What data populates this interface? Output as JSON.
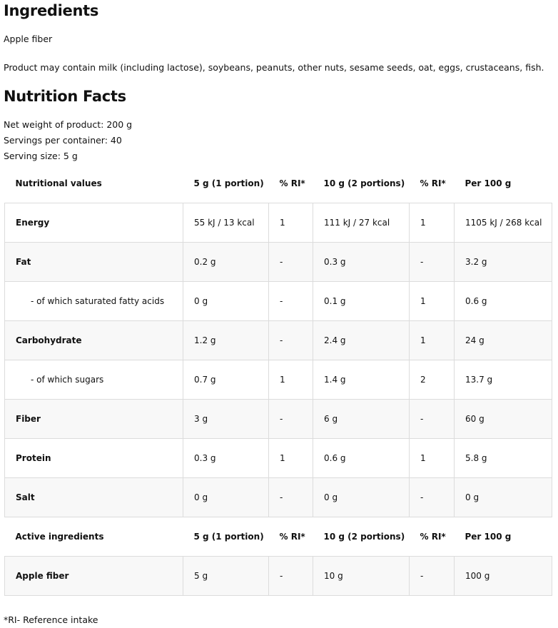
{
  "ingredients": {
    "title": "Ingredients",
    "text": "Apple fiber",
    "allergens": "Product may contain milk (including lactose), soybeans, peanuts, other nuts, sesame seeds, oat, eggs, crustaceans, fish."
  },
  "nutrition": {
    "title": "Nutrition Facts",
    "net_weight": "Net weight of product: 200 g",
    "servings": "Servings per container: 40",
    "serving_size": "Serving size: 5 g"
  },
  "table": {
    "header": [
      "Nutritional values",
      "5 g (1 portion)",
      "% RI*",
      "10 g (2 portions)",
      "% RI*",
      "Per 100 g"
    ],
    "rows": [
      {
        "cells": [
          "Energy",
          "55 kJ / 13 kcal",
          "1",
          "111 kJ / 27 kcal",
          "1",
          "1105 kJ / 268 kcal"
        ]
      },
      {
        "cells": [
          "Fat",
          "0.2 g",
          "-",
          "0.3 g",
          "-",
          "3.2 g"
        ]
      },
      {
        "cells": [
          "- of which saturated fatty acids",
          "0 g",
          "-",
          "0.1 g",
          "1",
          "0.6 g"
        ]
      },
      {
        "cells": [
          "Carbohydrate",
          "1.2 g",
          "-",
          "2.4 g",
          "1",
          "24 g"
        ]
      },
      {
        "cells": [
          "- of which sugars",
          "0.7 g",
          "1",
          "1.4 g",
          "2",
          "13.7 g"
        ]
      },
      {
        "cells": [
          "Fiber",
          "3 g",
          "-",
          "6 g",
          "-",
          "60 g"
        ]
      },
      {
        "cells": [
          "Protein",
          "0.3 g",
          "1",
          "0.6 g",
          "1",
          "5.8 g"
        ]
      },
      {
        "cells": [
          "Salt",
          "0 g",
          "-",
          "0 g",
          "-",
          "0 g"
        ]
      }
    ],
    "active_header": [
      "Active ingredients",
      "5 g (1 portion)",
      "% RI*",
      "10 g (2 portions)",
      "% RI*",
      "Per 100 g"
    ],
    "active_rows": [
      {
        "cells": [
          "Apple fiber",
          "5 g",
          "-",
          "10 g",
          "-",
          "100 g"
        ]
      }
    ]
  },
  "footnote": "*RI- Reference intake"
}
